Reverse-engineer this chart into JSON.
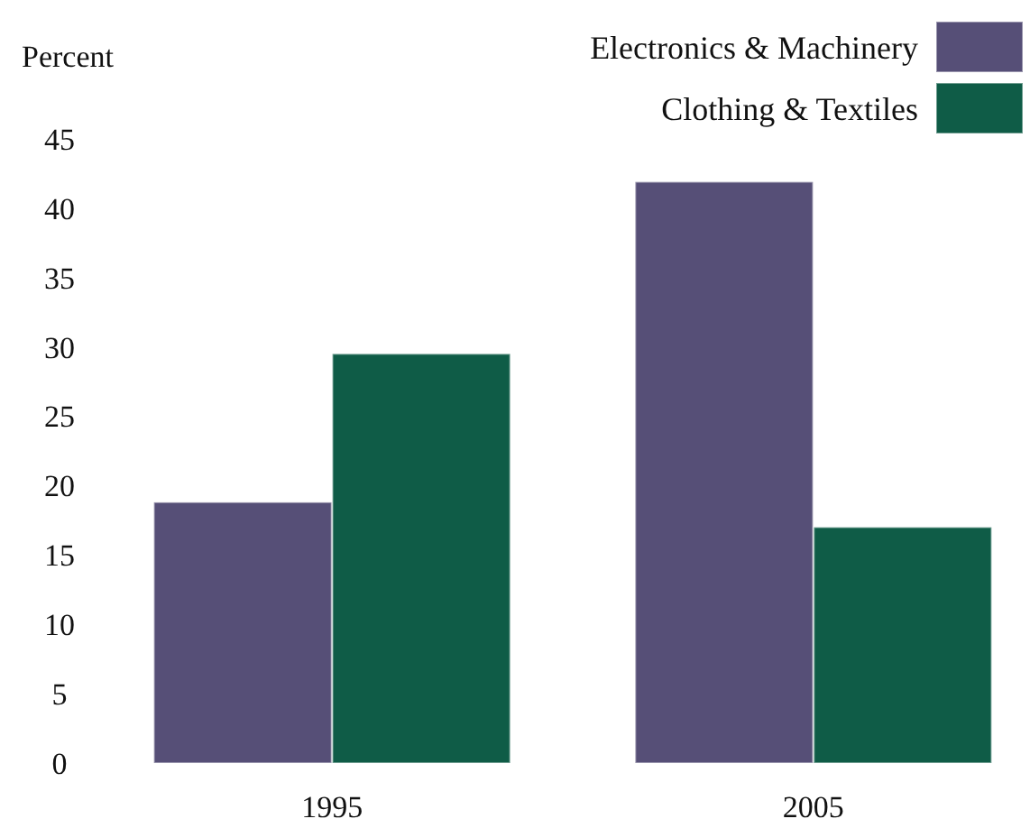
{
  "chart_data": {
    "type": "bar",
    "ylabel": "Percent",
    "categories": [
      "1995",
      "2005"
    ],
    "series": [
      {
        "name": "Electronics & Machinery",
        "color": "#564f77",
        "values": [
          18.8,
          41.9
        ]
      },
      {
        "name": "Clothing & Textiles",
        "color": "#0f5c47",
        "values": [
          29.5,
          17.0
        ]
      }
    ],
    "ylim": [
      0,
      45
    ],
    "yticks": [
      0,
      5,
      10,
      15,
      20,
      25,
      30,
      35,
      40,
      45
    ],
    "grid": false,
    "legend": "top right"
  }
}
